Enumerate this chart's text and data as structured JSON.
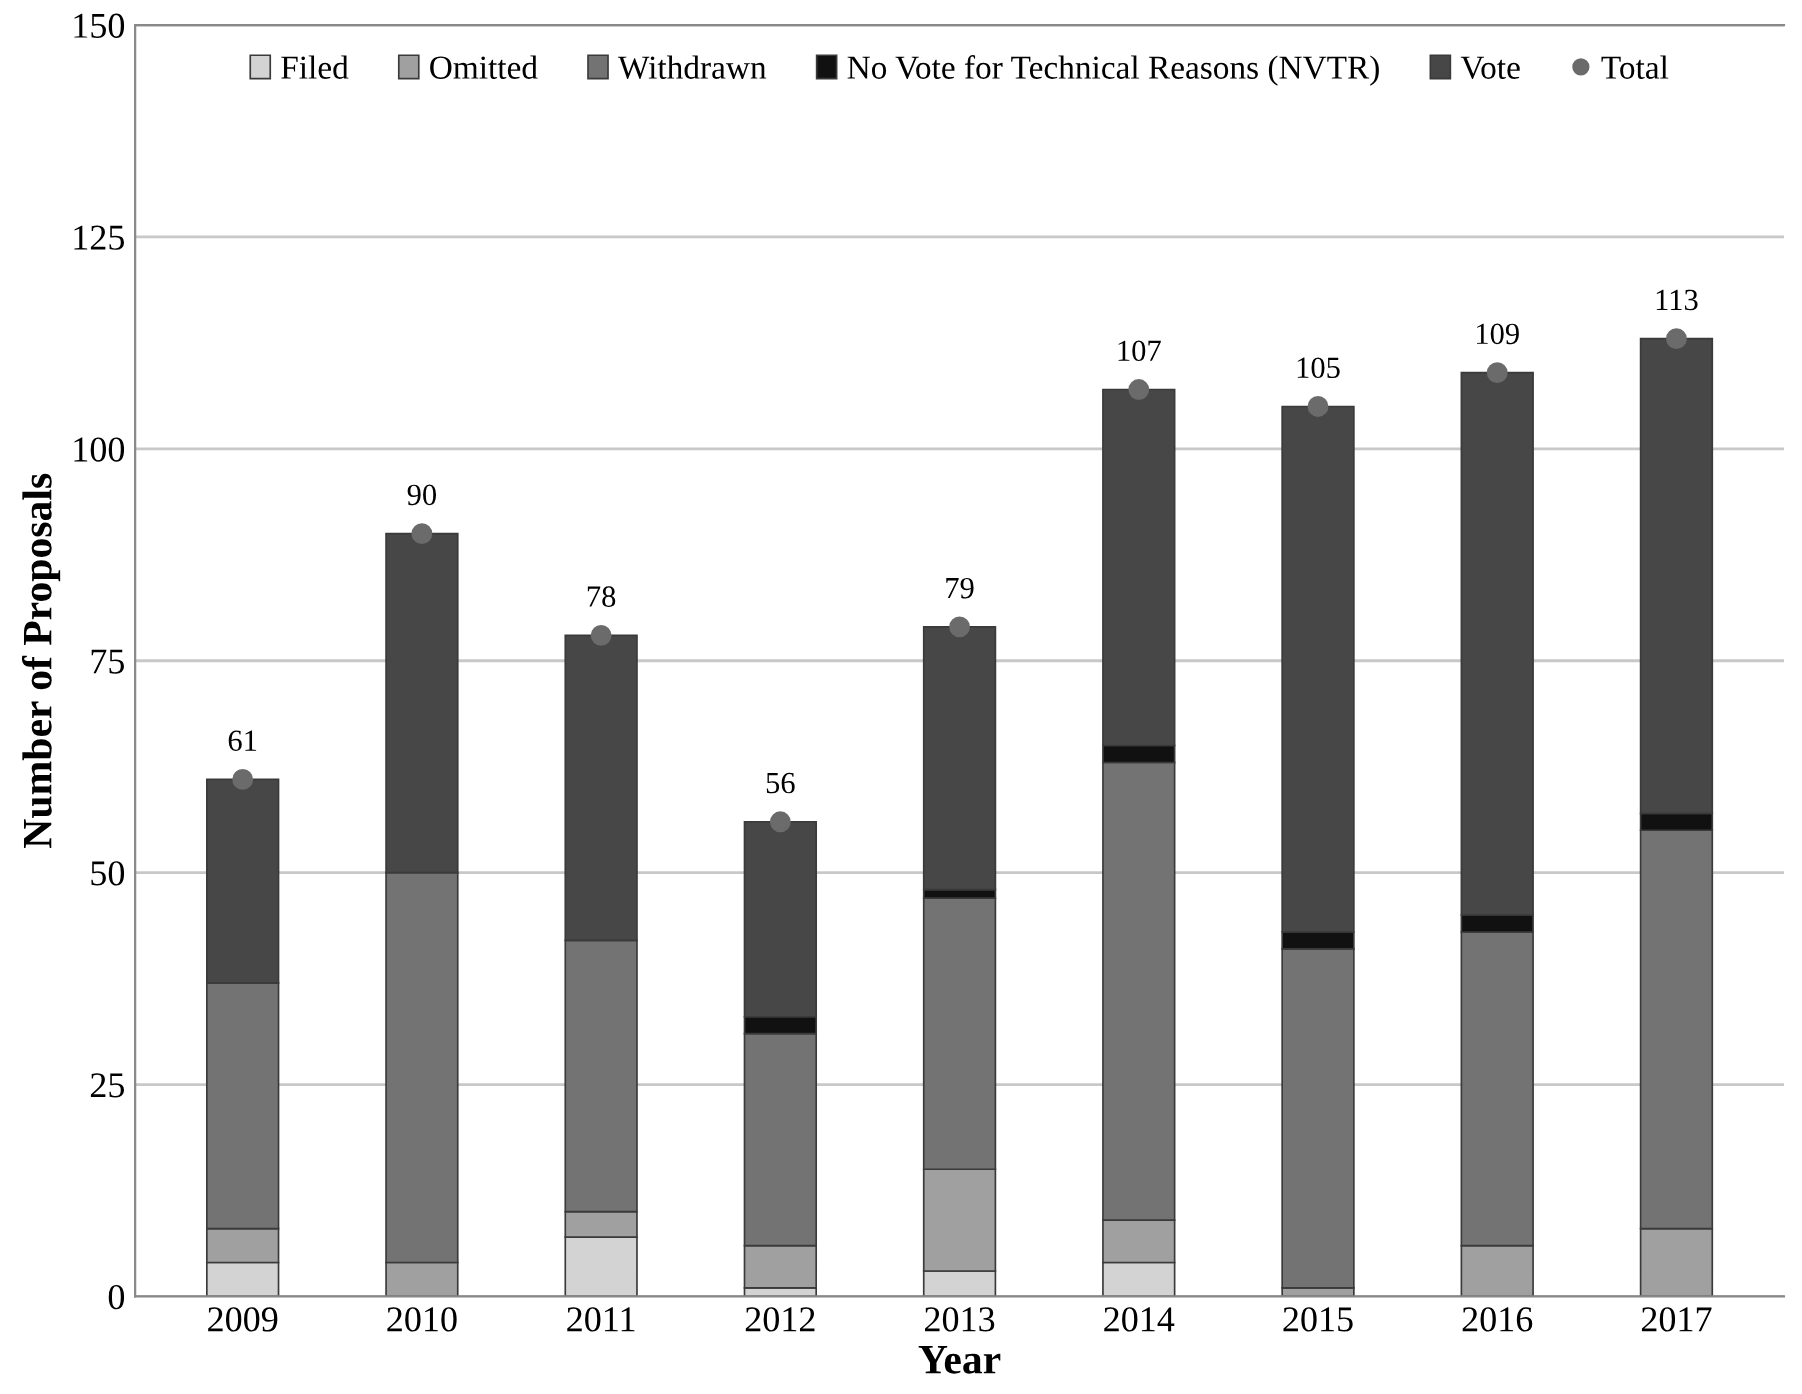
{
  "chart_data": {
    "type": "bar",
    "stacked": true,
    "xlabel": "Year",
    "ylabel": "Number of Proposals",
    "categories": [
      "2009",
      "2010",
      "2011",
      "2012",
      "2013",
      "2014",
      "2015",
      "2016",
      "2017"
    ],
    "series": [
      {
        "name": "Filed",
        "color": "#d3d3d3",
        "values": [
          4,
          0,
          7,
          1,
          3,
          4,
          0,
          0,
          0
        ]
      },
      {
        "name": "Omitted",
        "color": "#a0a0a0",
        "values": [
          4,
          4,
          3,
          5,
          12,
          5,
          1,
          6,
          8
        ]
      },
      {
        "name": "Withdrawn",
        "color": "#737373",
        "values": [
          29,
          46,
          32,
          25,
          32,
          54,
          40,
          37,
          47
        ]
      },
      {
        "name": "No Vote for Technical Reasons (NVTR)",
        "color": "#111111",
        "values": [
          0,
          0,
          0,
          2,
          1,
          2,
          2,
          2,
          2
        ]
      },
      {
        "name": "Vote",
        "color": "#474747",
        "values": [
          24,
          40,
          36,
          23,
          31,
          42,
          62,
          64,
          56
        ]
      },
      {
        "name": "Total",
        "type": "scatter",
        "color": "#6b6b6b",
        "values": [
          61,
          90,
          78,
          56,
          79,
          107,
          105,
          109,
          113
        ],
        "value_labels": [
          "61",
          "90",
          "78",
          "56",
          "79",
          "107",
          "105",
          "109",
          "113"
        ]
      }
    ],
    "ylim": [
      0,
      150
    ],
    "yticks": [
      0,
      25,
      50,
      75,
      100,
      125,
      150
    ],
    "grid": "y",
    "legend": "top",
    "marker": "circle"
  }
}
